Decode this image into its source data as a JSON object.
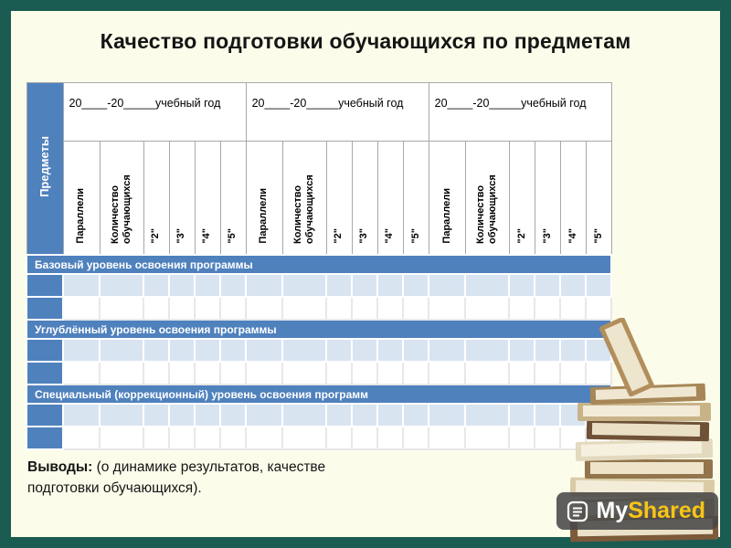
{
  "slide": {
    "title": "Качество подготовки обучающихся по предметам",
    "conclusions": {
      "label": "Выводы:",
      "text": " (о динамике результатов, качестве подготовки обучающихся)."
    }
  },
  "table": {
    "predmety_label": "Предметы",
    "year_groups": [
      {
        "label": "20____-20_____учебный год"
      },
      {
        "label": "20____-20_____учебный год"
      },
      {
        "label": "20____-20_____учебный год"
      }
    ],
    "subheaders": [
      "Параллели",
      "Количество обучающихся",
      "\"2\"",
      "\"3\"",
      "\"4\"",
      "\"5\""
    ],
    "sections": [
      {
        "label": "Базовый уровень освоения программы"
      },
      {
        "label": "Углублённый уровень освоения программы"
      },
      {
        "label": "Специальный (коррекционный) уровень освоения программ"
      }
    ]
  },
  "watermark": {
    "my": "My",
    "shared": "Shared"
  },
  "colors": {
    "frame": "#1A5B52",
    "slide_bg": "#FCFCEA",
    "accent_blue": "#4F81BD",
    "row_light": "#D9E4F1",
    "logo_yellow": "#F8C515"
  }
}
